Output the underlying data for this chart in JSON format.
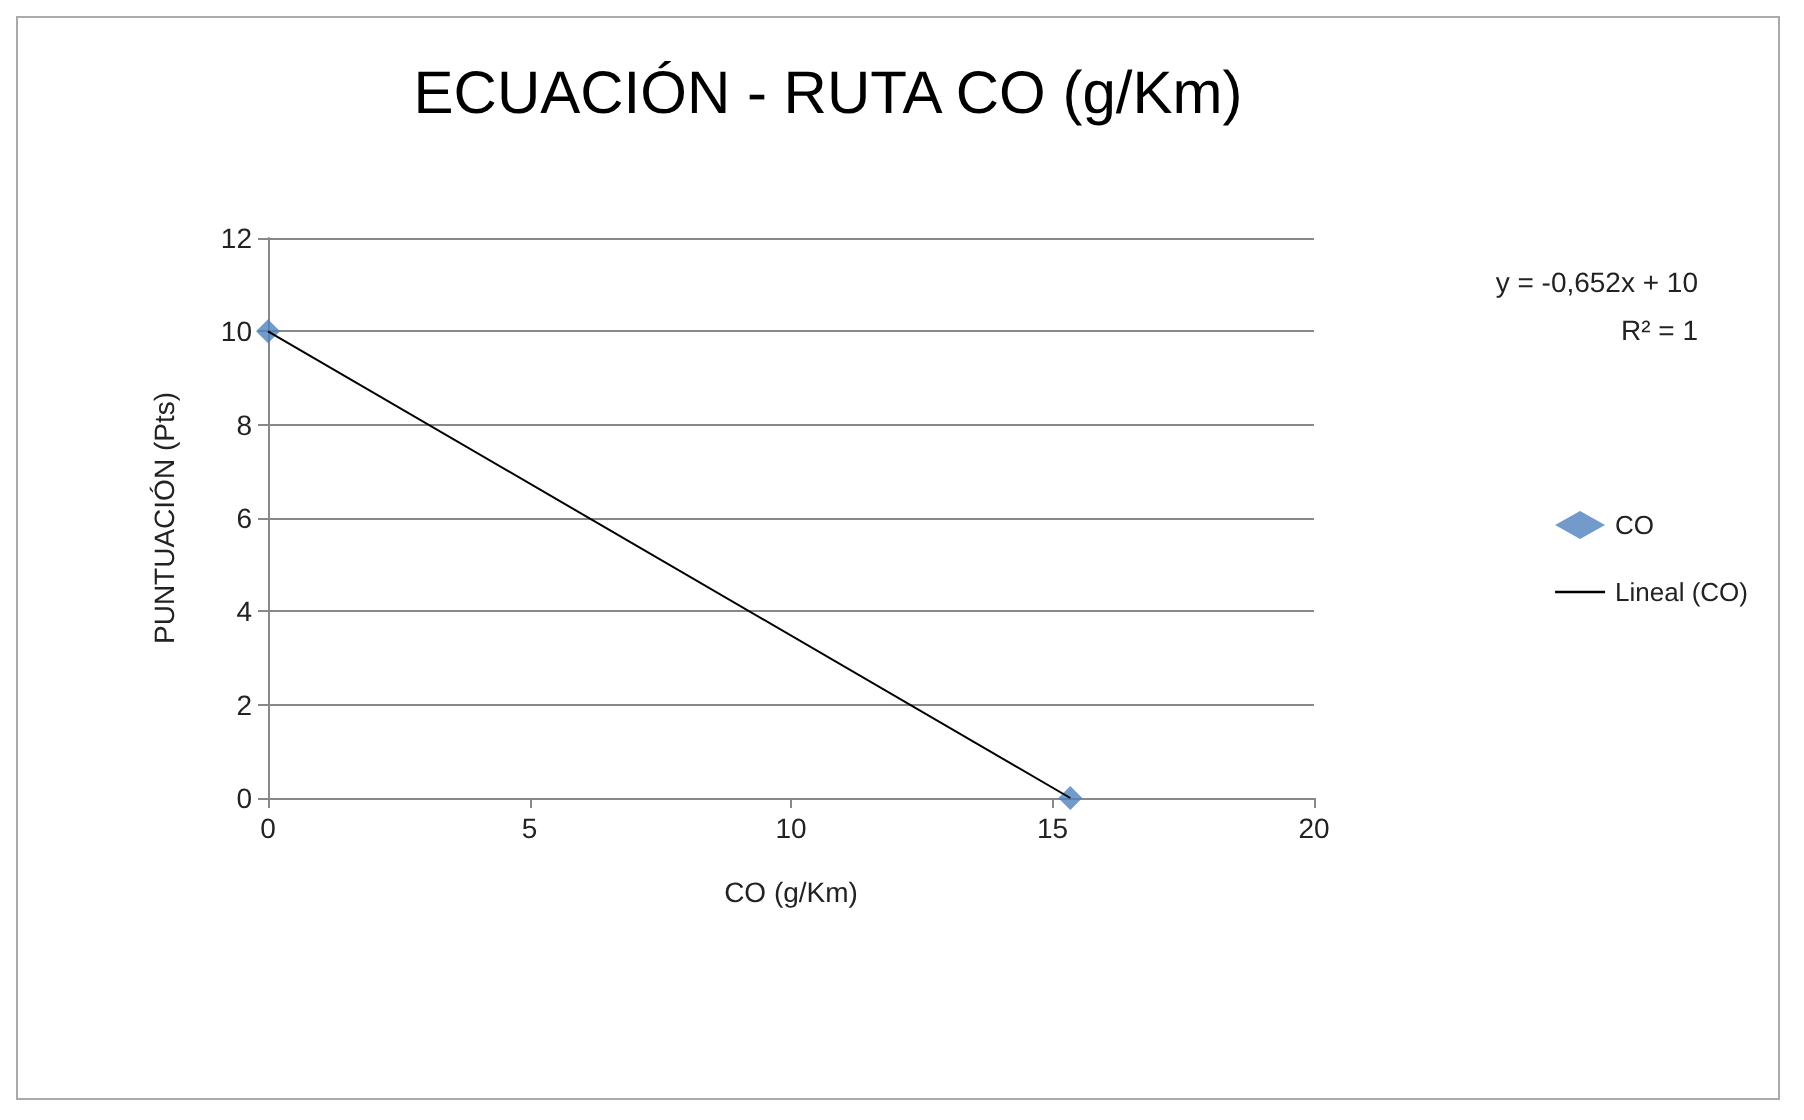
{
  "chart_data": {
    "type": "scatter",
    "title": "ECUACIÓN - RUTA CO (g/Km)",
    "xlabel": "CO (g/Km)",
    "ylabel": "PUNTUACIÓN (Pts)",
    "x": [
      0,
      15.34
    ],
    "series": [
      {
        "name": "CO",
        "color": "#4f81bd",
        "values": [
          10,
          0
        ]
      },
      {
        "name": "Lineal (CO)",
        "type": "line",
        "color": "#000000",
        "marker": "none",
        "values": [
          10,
          0
        ]
      }
    ],
    "xlim": [
      0,
      20
    ],
    "xticks": [
      0,
      5,
      10,
      15,
      20
    ],
    "ylim": [
      0,
      12
    ],
    "yticks": [
      0,
      2,
      4,
      6,
      8,
      10,
      12
    ],
    "grid": "y",
    "legend": "right",
    "marker": "diamond",
    "annotations": [
      "y = -0,652x + 10",
      "R² = 1"
    ]
  }
}
